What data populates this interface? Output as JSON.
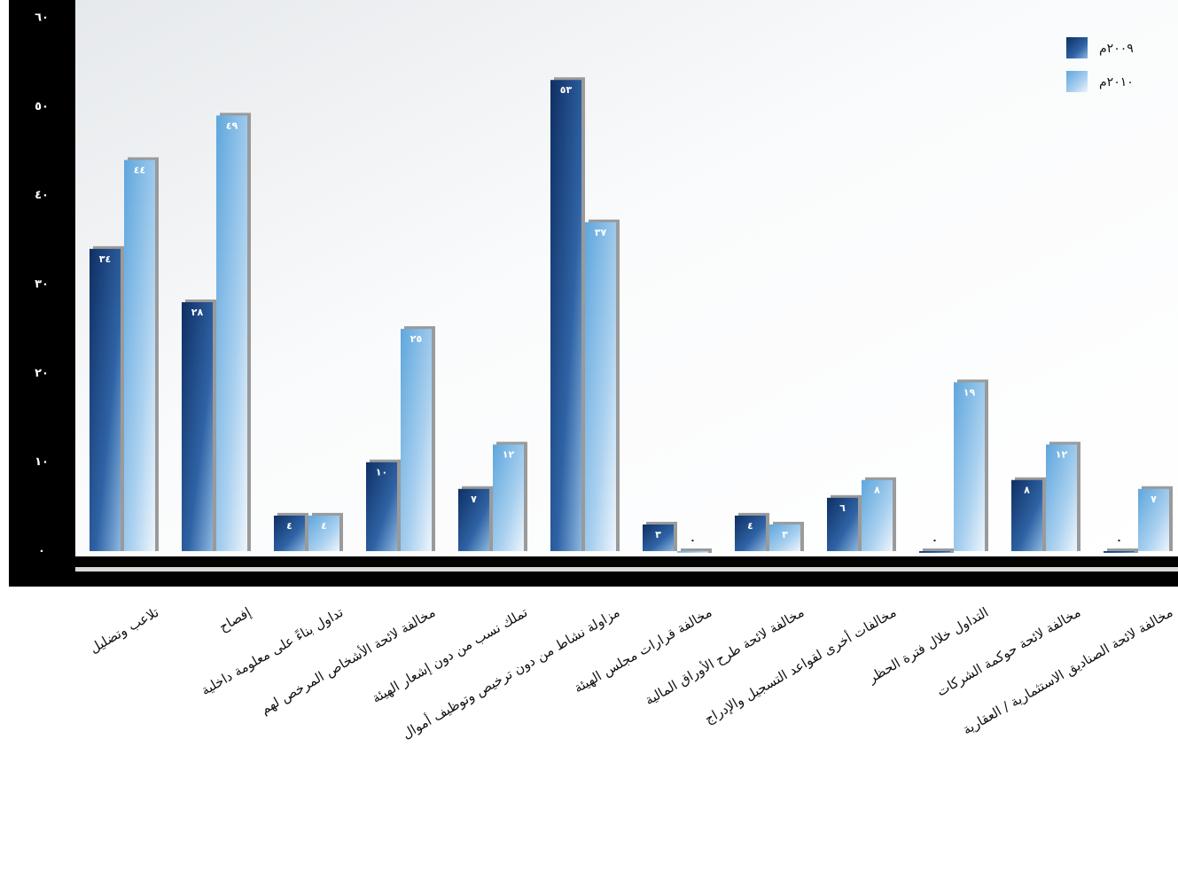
{
  "chart_data": {
    "type": "bar",
    "categories": [
      "تلاعب وتضليل",
      "إفصاح",
      "تداول بناءً على معلومة داخلية",
      "مخالفة لائحة الأشخاص المرخص لهم",
      "تملك نسب من دون إشعار الهيئة",
      "مزاولة نشاط من دون ترخيص وتوظيف أموال",
      "مخالفة قرارات مجلس الهيئة",
      "مخالفة لائحة طرح الأوراق المالية",
      "مخالفات أخرى لقواعد التسجيل والإدراج",
      "التداول خلال فترة الحظر",
      "مخالفة لائحة حوكمة الشركات",
      "مخالفة لائحة الصناديق الاستثمارية / العقارية"
    ],
    "series": [
      {
        "name": "٢٠٠٩م",
        "color": "#1d467f",
        "values": [
          34,
          28,
          4,
          10,
          7,
          53,
          3,
          4,
          6,
          0,
          8,
          0
        ],
        "value_labels": [
          "٣٤",
          "٢٨",
          "٤",
          "١٠",
          "٧",
          "٥٣",
          "٣",
          "٤",
          "٦",
          "٠",
          "٨",
          "٠"
        ]
      },
      {
        "name": "٢٠١٠م",
        "color": "#79b8e6",
        "values": [
          44,
          49,
          4,
          25,
          12,
          37,
          0,
          3,
          8,
          19,
          12,
          7
        ],
        "value_labels": [
          "٤٤",
          "٤٩",
          "٤",
          "٢٥",
          "١٢",
          "٣٧",
          "٠",
          "٣",
          "٨",
          "١٩",
          "١٢",
          "٧"
        ]
      }
    ],
    "ylim": [
      0,
      60
    ],
    "yticks": [
      {
        "value": 0,
        "label": "٠"
      },
      {
        "value": 10,
        "label": "١٠"
      },
      {
        "value": 20,
        "label": "٢٠"
      },
      {
        "value": 30,
        "label": "٣٠"
      },
      {
        "value": 40,
        "label": "٤٠"
      },
      {
        "value": 50,
        "label": "٥٠"
      },
      {
        "value": 60,
        "label": "٦٠"
      }
    ],
    "legend": "top-right"
  }
}
